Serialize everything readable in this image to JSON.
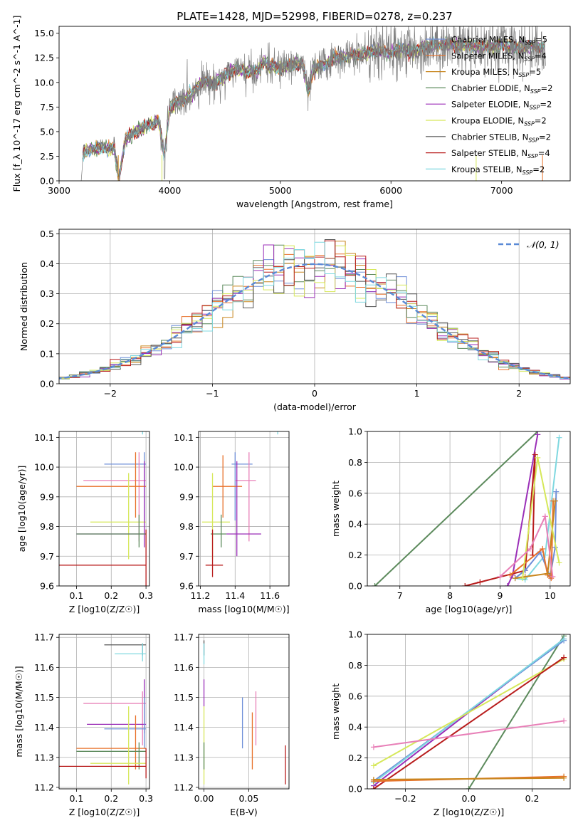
{
  "chart_data": [
    {
      "panel": "spectrum",
      "type": "line",
      "title": "PLATE=1428, MJD=52998, FIBERID=0278, z=0.237",
      "xlabel": "wavelength [Angstrom, rest frame]",
      "ylabel": "Flux [f_λ 10^-17 erg cm^-2 s^-1 A^-1]",
      "xlim": [
        3000,
        7620
      ],
      "ylim": [
        0,
        15.7
      ],
      "xticks": [
        3000,
        4000,
        5000,
        6000,
        7000
      ],
      "yticks": [
        0.0,
        2.5,
        5.0,
        7.5,
        10.0,
        12.5,
        15.0
      ],
      "observed": {
        "color": "#7f7f7f",
        "x": [
          3200,
          3215,
          3230,
          3300,
          3400,
          3500,
          3540,
          3600,
          3700,
          3800,
          3900,
          3950,
          4000,
          4100,
          4200,
          4300,
          4400,
          4500,
          4600,
          4700,
          4800,
          4850,
          4900,
          5000,
          5100,
          5200,
          5250,
          5300,
          5400,
          5500,
          5600,
          5700,
          5800,
          5900,
          6000,
          6100,
          6200,
          6300,
          6400,
          6500,
          6600,
          6700,
          6800,
          6900,
          7000,
          7100,
          7200,
          7300,
          7400
        ],
        "y": [
          0.0,
          2.6,
          3.0,
          3.3,
          3.4,
          3.3,
          0.2,
          4.2,
          5.0,
          5.6,
          6.2,
          2.4,
          7.4,
          8.1,
          8.8,
          10.2,
          9.8,
          10.7,
          11.4,
          11.0,
          11.2,
          12.1,
          11.6,
          11.5,
          11.8,
          12.0,
          9.0,
          11.4,
          11.8,
          12.5,
          12.6,
          12.8,
          13.0,
          13.2,
          13.0,
          13.4,
          13.1,
          13.6,
          13.8,
          13.9,
          13.7,
          13.8,
          13.6,
          13.7,
          13.8,
          13.6,
          13.6,
          13.7,
          13.5
        ]
      },
      "legend_position": "upper right",
      "series": [
        {
          "name": "Chabrier MILES, N_SSP=5",
          "color": "#6f8fd8"
        },
        {
          "name": "Salpeter MILES, N_SSP=4",
          "color": "#e8712a"
        },
        {
          "name": "Kroupa MILES, N_SSP=5",
          "color": "#c8861e"
        },
        {
          "name": "Chabrier ELODIE, N_SSP=2",
          "color": "#5c8a5c"
        },
        {
          "name": "Salpeter ELODIE, N_SSP=2",
          "color": "#9b2fb8"
        },
        {
          "name": "Kroupa ELODIE, N_SSP=2",
          "color": "#d6e85a"
        },
        {
          "name": "Chabrier STELIB, N_SSP=2",
          "color": "#555555"
        },
        {
          "name": "Salpeter STELIB, N_SSP=4",
          "color": "#b81c1c"
        },
        {
          "name": "Kroupa STELIB, N_SSP=2",
          "color": "#7fd8e0"
        }
      ]
    },
    {
      "panel": "residuals",
      "type": "line",
      "xlabel": "(data-model)/error",
      "ylabel": "Normed distribution",
      "xlim": [
        -2.5,
        2.5
      ],
      "ylim": [
        0,
        0.515
      ],
      "xticks": [
        -2,
        -1,
        0,
        1,
        2
      ],
      "yticks": [
        0.0,
        0.1,
        0.2,
        0.3,
        0.4,
        0.5
      ],
      "grid": true,
      "reference_curve": {
        "name": "𝒩(0, 1)",
        "mu": 0,
        "sigma": 1,
        "color": "#5a8ad6",
        "style": "dashed"
      },
      "legend_position": "upper right",
      "histogram_bin_width": 0.1
    },
    {
      "panel": "age-vs-Z",
      "type": "scatter",
      "xlabel": "Z [log10(Z/Z☉)]",
      "ylabel": "age  [log10(age/yr)]",
      "xlim": [
        0.05,
        0.31
      ],
      "ylim": [
        9.6,
        10.12
      ],
      "xticks": [
        0.1,
        0.2,
        0.3
      ],
      "yticks": [
        9.6,
        9.7,
        9.8,
        9.9,
        10.0,
        10.1
      ],
      "grid": true,
      "points": [
        {
          "x": 0.29,
          "y": 10.16,
          "xerr": [
            0.18,
            0.3
          ],
          "yerr": [
            10.13,
            10.17
          ],
          "color": "#555555"
        },
        {
          "x": 0.29,
          "y": 10.16,
          "xerr": [
            0.21,
            0.3
          ],
          "yerr": [
            10.11,
            10.17
          ],
          "color": "#7fd8e0"
        },
        {
          "x": 0.295,
          "y": 10.01,
          "xerr": [
            0.18,
            0.3
          ],
          "yerr": [
            9.82,
            10.05
          ],
          "color": "#6f8fd8"
        },
        {
          "x": 0.28,
          "y": 9.955,
          "xerr": [
            0.12,
            0.3
          ],
          "yerr": [
            9.75,
            10.05
          ],
          "color": "#e880b8"
        },
        {
          "x": 0.27,
          "y": 9.935,
          "xerr": [
            0.1,
            0.3
          ],
          "yerr": [
            9.83,
            10.05
          ],
          "color": "#e8712a"
        },
        {
          "x": 0.25,
          "y": 9.815,
          "xerr": [
            0.14,
            0.3
          ],
          "yerr": [
            9.69,
            9.98
          ],
          "color": "#d6e85a"
        },
        {
          "x": 0.295,
          "y": 9.775,
          "xerr": [
            0.1,
            0.3
          ],
          "yerr": [
            9.73,
            10.02
          ],
          "color": "#9b2fb8"
        },
        {
          "x": 0.28,
          "y": 9.775,
          "xerr": [
            0.1,
            0.3
          ],
          "yerr": [
            9.73,
            9.84
          ],
          "color": "#5c8a5c"
        },
        {
          "x": 0.3,
          "y": 9.67,
          "xerr": [
            0.05,
            0.3
          ],
          "yerr": [
            9.6,
            9.79
          ],
          "color": "#b81c1c"
        }
      ]
    },
    {
      "panel": "age-vs-mass",
      "type": "scatter",
      "xlabel": "mass [log10(M/M☉)]",
      "ylabel": "",
      "xlim": [
        11.19,
        11.71
      ],
      "ylim": [
        9.6,
        10.12
      ],
      "xticks": [
        11.2,
        11.4,
        11.6
      ],
      "yticks": [
        9.6,
        9.7,
        9.8,
        9.9,
        10.0,
        10.1
      ],
      "grid": true,
      "points": [
        {
          "x": 11.675,
          "y": 10.16,
          "xerr": [
            11.64,
            11.68
          ],
          "yerr": [
            10.13,
            10.17
          ],
          "color": "#555555"
        },
        {
          "x": 11.645,
          "y": 10.16,
          "xerr": [
            11.62,
            11.68
          ],
          "yerr": [
            10.11,
            10.17
          ],
          "color": "#7fd8e0"
        },
        {
          "x": 11.4,
          "y": 10.01,
          "xerr": [
            11.38,
            11.5
          ],
          "yerr": [
            9.82,
            10.05
          ],
          "color": "#6f8fd8"
        },
        {
          "x": 11.48,
          "y": 9.955,
          "xerr": [
            11.4,
            11.52
          ],
          "yerr": [
            9.75,
            10.05
          ],
          "color": "#e880b8"
        },
        {
          "x": 11.33,
          "y": 9.935,
          "xerr": [
            11.27,
            11.44
          ],
          "yerr": [
            9.83,
            10.04
          ],
          "color": "#e8712a"
        },
        {
          "x": 11.27,
          "y": 9.815,
          "xerr": [
            11.21,
            11.37
          ],
          "yerr": [
            9.69,
            9.98
          ],
          "color": "#d6e85a"
        },
        {
          "x": 11.41,
          "y": 9.775,
          "xerr": [
            11.35,
            11.55
          ],
          "yerr": [
            9.7,
            10.02
          ],
          "color": "#9b2fb8"
        },
        {
          "x": 11.32,
          "y": 9.775,
          "xerr": [
            11.26,
            11.35
          ],
          "yerr": [
            9.73,
            9.84
          ],
          "color": "#5c8a5c"
        },
        {
          "x": 11.27,
          "y": 9.67,
          "xerr": [
            11.23,
            11.33
          ],
          "yerr": [
            9.63,
            9.79
          ],
          "color": "#b81c1c"
        }
      ]
    },
    {
      "panel": "weight-vs-age",
      "type": "line",
      "xlabel": "age  [log10(age/yr)]",
      "ylabel": "mass weight",
      "xlim": [
        6.35,
        10.4
      ],
      "ylim": [
        0,
        1.0
      ],
      "xticks": [
        7,
        8,
        9,
        10
      ],
      "yticks": [
        0.0,
        0.2,
        0.4,
        0.6,
        0.8,
        1.0
      ],
      "grid": true,
      "series": [
        {
          "color": "#5c8a5c",
          "x": [
            6.5,
            9.75
          ],
          "y": [
            0.0,
            1.0
          ]
        },
        {
          "color": "#9b2fb8",
          "x": [
            9.15,
            9.25,
            9.75
          ],
          "y": [
            0.0,
            0.07,
            0.98
          ]
        },
        {
          "color": "#b81c1c",
          "x": [
            8.3,
            8.6,
            9.5,
            9.7,
            9.65
          ],
          "y": [
            0.0,
            0.025,
            0.1,
            0.85,
            0.2
          ]
        },
        {
          "color": "#7fd8e0",
          "x": [
            9.3,
            9.5,
            9.9,
            10.18
          ],
          "y": [
            0.05,
            0.04,
            0.2,
            0.96
          ]
        },
        {
          "color": "#6f8fd8",
          "x": [
            9.3,
            9.5,
            9.8,
            10.0,
            10.1,
            10.12
          ],
          "y": [
            0.05,
            0.1,
            0.22,
            0.06,
            0.25,
            0.61
          ]
        },
        {
          "color": "#e8712a",
          "x": [
            9.2,
            9.85,
            9.95,
            10.02,
            10.06
          ],
          "y": [
            0.07,
            0.24,
            0.07,
            0.05,
            0.55
          ]
        },
        {
          "color": "#c8861e",
          "x": [
            9.3,
            9.5,
            9.95,
            10.1
          ],
          "y": [
            0.05,
            0.06,
            0.08,
            0.55
          ]
        },
        {
          "color": "#d6e85a",
          "x": [
            9.45,
            9.75,
            10.18
          ],
          "y": [
            0.05,
            0.83,
            0.15
          ]
        },
        {
          "color": "#e880b8",
          "x": [
            9.0,
            9.6,
            9.9,
            10.05
          ],
          "y": [
            0.06,
            0.24,
            0.45,
            0.06
          ]
        }
      ]
    },
    {
      "panel": "mass-vs-Z",
      "type": "scatter",
      "xlabel": "Z [log10(Z/Z☉)]",
      "ylabel": "mass [log10(M/M☉)]",
      "xlim": [
        0.05,
        0.31
      ],
      "ylim": [
        11.195,
        11.71
      ],
      "xticks": [
        0.1,
        0.2,
        0.3
      ],
      "yticks": [
        11.2,
        11.3,
        11.4,
        11.5,
        11.6,
        11.7
      ],
      "grid": true,
      "points": [
        {
          "x": 0.29,
          "y": 11.675,
          "xerr": [
            0.18,
            0.3
          ],
          "yerr": [
            11.64,
            11.68
          ],
          "color": "#555555"
        },
        {
          "x": 0.29,
          "y": 11.645,
          "xerr": [
            0.21,
            0.3
          ],
          "yerr": [
            11.62,
            11.68
          ],
          "color": "#7fd8e0"
        },
        {
          "x": 0.29,
          "y": 11.48,
          "xerr": [
            0.12,
            0.3
          ],
          "yerr": [
            11.34,
            11.52
          ],
          "color": "#e880b8"
        },
        {
          "x": 0.295,
          "y": 11.41,
          "xerr": [
            0.13,
            0.3
          ],
          "yerr": [
            11.38,
            11.56
          ],
          "color": "#9b2fb8"
        },
        {
          "x": 0.295,
          "y": 11.395,
          "xerr": [
            0.18,
            0.3
          ],
          "yerr": [
            11.33,
            11.5
          ],
          "color": "#6f8fd8"
        },
        {
          "x": 0.27,
          "y": 11.33,
          "xerr": [
            0.1,
            0.3
          ],
          "yerr": [
            11.26,
            11.44
          ],
          "color": "#e8712a"
        },
        {
          "x": 0.28,
          "y": 11.32,
          "xerr": [
            0.1,
            0.3
          ],
          "yerr": [
            11.26,
            11.35
          ],
          "color": "#5c8a5c"
        },
        {
          "x": 0.25,
          "y": 11.28,
          "xerr": [
            0.14,
            0.3
          ],
          "yerr": [
            11.21,
            11.47
          ],
          "color": "#d6e85a"
        },
        {
          "x": 0.3,
          "y": 11.27,
          "xerr": [
            0.05,
            0.3
          ],
          "yerr": [
            11.23,
            11.33
          ],
          "color": "#b81c1c"
        }
      ]
    },
    {
      "panel": "mass-vs-EBV",
      "type": "scatter",
      "xlabel": "E(B-V)",
      "ylabel": "",
      "xlim": [
        -0.006,
        0.095
      ],
      "ylim": [
        11.195,
        11.71
      ],
      "xticks": [
        0.0,
        0.05
      ],
      "yticks": [
        11.2,
        11.3,
        11.4,
        11.5,
        11.6,
        11.7
      ],
      "grid": true,
      "points": [
        {
          "x": 0.0,
          "y": 11.675,
          "yerr": [
            11.64,
            11.69
          ],
          "color": "#555555"
        },
        {
          "x": 0.0,
          "y": 11.645,
          "yerr": [
            11.61,
            11.68
          ],
          "color": "#7fd8e0"
        },
        {
          "x": 0.0,
          "y": 11.52,
          "yerr": [
            11.47,
            11.56
          ],
          "color": "#9b2fb8"
        },
        {
          "x": 0.0,
          "y": 11.4,
          "yerr": [
            11.21,
            11.47
          ],
          "color": "#d6e85a"
        },
        {
          "x": 0.0,
          "y": 11.3,
          "yerr": [
            11.26,
            11.35
          ],
          "color": "#5c8a5c"
        },
        {
          "x": 0.043,
          "y": 11.41,
          "yerr": [
            11.33,
            11.5
          ],
          "color": "#6f8fd8"
        },
        {
          "x": 0.054,
          "y": 11.35,
          "yerr": [
            11.26,
            11.45
          ],
          "color": "#e8712a"
        },
        {
          "x": 0.058,
          "y": 11.43,
          "yerr": [
            11.34,
            11.52
          ],
          "color": "#e880b8"
        },
        {
          "x": 0.091,
          "y": 11.28,
          "yerr": [
            11.21,
            11.34
          ],
          "color": "#b81c1c"
        }
      ]
    },
    {
      "panel": "weight-vs-Z",
      "type": "line",
      "xlabel": "Z [log10(Z/Z☉)]",
      "ylabel": "mass weight",
      "xlim": [
        -0.32,
        0.32
      ],
      "ylim": [
        0,
        1.0
      ],
      "xticks": [
        -0.2,
        0.0,
        0.2
      ],
      "yticks": [
        0.0,
        0.2,
        0.4,
        0.6,
        0.8,
        1.0
      ],
      "grid": true,
      "series": [
        {
          "color": "#5c8a5c",
          "x": [
            0.0,
            0.3
          ],
          "y": [
            0.0,
            0.99
          ]
        },
        {
          "color": "#9b2fb8",
          "x": [
            -0.3,
            0.3
          ],
          "y": [
            0.02,
            0.97
          ]
        },
        {
          "color": "#6f8fd8",
          "x": [
            -0.3,
            0.3
          ],
          "y": [
            0.05,
            0.96
          ]
        },
        {
          "color": "#7fd8e0",
          "x": [
            -0.3,
            0.3
          ],
          "y": [
            0.04,
            0.97
          ]
        },
        {
          "color": "#d6e85a",
          "x": [
            -0.3,
            0.3
          ],
          "y": [
            0.15,
            0.84
          ]
        },
        {
          "color": "#b81c1c",
          "x": [
            -0.3,
            0.3
          ],
          "y": [
            0.0,
            0.85
          ]
        },
        {
          "color": "#e880b8",
          "x": [
            -0.3,
            0.3
          ],
          "y": [
            0.27,
            0.44
          ]
        },
        {
          "color": "#e8712a",
          "x": [
            -0.3,
            0.3
          ],
          "y": [
            0.05,
            0.08
          ]
        },
        {
          "color": "#c8861e",
          "x": [
            -0.3,
            0.3
          ],
          "y": [
            0.06,
            0.07
          ]
        }
      ]
    }
  ]
}
